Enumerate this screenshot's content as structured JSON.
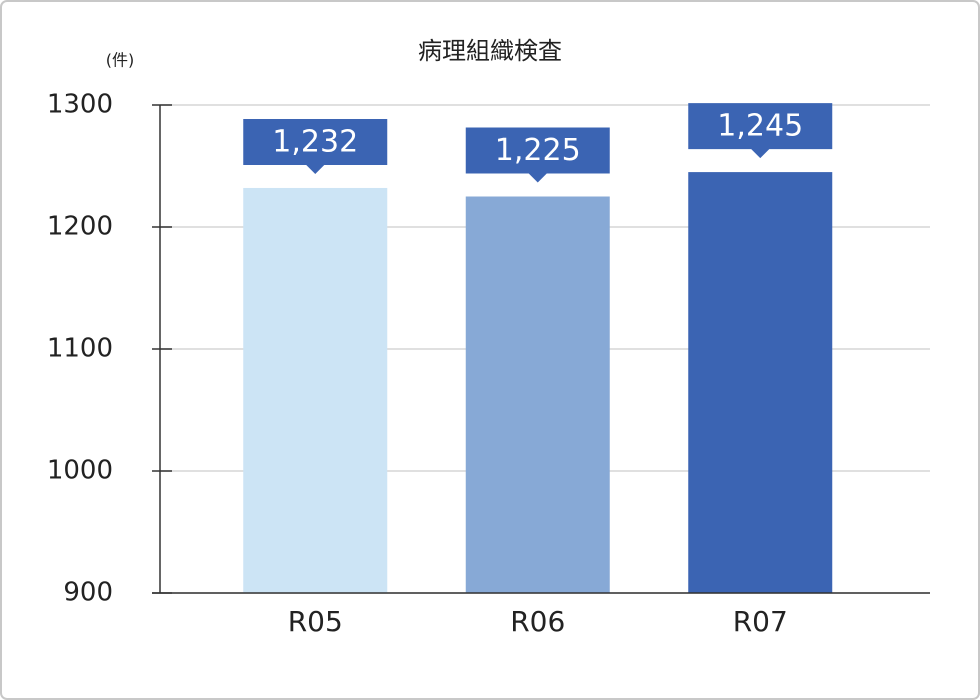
{
  "chart_data": {
    "type": "bar",
    "title": "病理組織検査",
    "y_unit": "(件)",
    "categories": [
      "R05",
      "R06",
      "R07"
    ],
    "values": [
      1232,
      1225,
      1245
    ],
    "value_labels": [
      "1,232",
      "1,225",
      "1,245"
    ],
    "colors": [
      "#cce4f5",
      "#87a9d6",
      "#3b64b3"
    ],
    "label_color": "#3b64b3",
    "ylim": [
      900,
      1300
    ],
    "yticks": [
      900,
      1000,
      1100,
      1200,
      1300
    ],
    "grid": true
  }
}
